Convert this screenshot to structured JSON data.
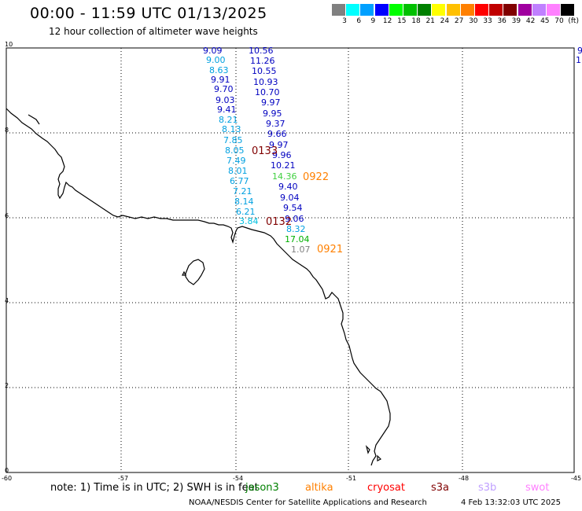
{
  "header": {
    "title": "00:00 - 11:59 UTC 01/13/2025",
    "subtitle": "12 hour collection of altimeter wave heights"
  },
  "color_scale": {
    "swatches": [
      "#808080",
      "#00ffff",
      "#00a0ff",
      "#0000ff",
      "#00ff00",
      "#00c000",
      "#008000",
      "#ffff00",
      "#ffc000",
      "#ff8000",
      "#ff0000",
      "#c00000",
      "#800000",
      "#a000a0",
      "#c080ff",
      "#ff80ff",
      "#000000"
    ],
    "labels": [
      "3",
      "6",
      "9",
      "12",
      "15",
      "18",
      "21",
      "24",
      "27",
      "30",
      "33",
      "36",
      "39",
      "42",
      "45",
      "70",
      "(ft)"
    ]
  },
  "map": {
    "lat_labels": [
      "10",
      "8",
      "6",
      "4",
      "2",
      "0"
    ],
    "lon_labels": [
      "-60",
      "-57",
      "-54",
      "-51",
      "-48",
      "-45"
    ],
    "tracks": [
      {
        "label": "9.09",
        "color": "#0000c0"
      },
      {
        "label": "9.00",
        "color": "#00a0e0"
      },
      {
        "label": "8.63",
        "color": "#00a0e0"
      },
      {
        "label": "9.91",
        "color": "#0000c0"
      },
      {
        "label": "9.70",
        "color": "#0000c0"
      },
      {
        "label": "9.03",
        "color": "#0000c0"
      },
      {
        "label": "9.41",
        "color": "#0000c0"
      },
      {
        "label": "8.21",
        "color": "#00a0e0"
      },
      {
        "label": "8.13",
        "color": "#00a0e0"
      },
      {
        "label": "7.85",
        "color": "#00a0e0"
      },
      {
        "label": "8.05",
        "color": "#00a0e0"
      },
      {
        "label": "7.49",
        "color": "#00a0e0"
      },
      {
        "label": "8.01",
        "color": "#00a0e0"
      },
      {
        "label": "6.77",
        "color": "#00a0e0"
      },
      {
        "label": "7.21",
        "color": "#00a0e0"
      },
      {
        "label": "8.14",
        "color": "#00a0e0"
      },
      {
        "label": "6.21",
        "color": "#00a0e0"
      },
      {
        "label": "3.84",
        "color": "#00c0e0"
      },
      {
        "label": "10.56",
        "color": "#0000c0"
      },
      {
        "label": "11.26",
        "color": "#0000c0"
      },
      {
        "label": "10.55",
        "color": "#0000c0"
      },
      {
        "label": "10.93",
        "color": "#0000c0"
      },
      {
        "label": "10.70",
        "color": "#0000c0"
      },
      {
        "label": "9.97",
        "color": "#0000c0"
      },
      {
        "label": "9.95",
        "color": "#0000c0"
      },
      {
        "label": "9.37",
        "color": "#0000c0"
      },
      {
        "label": "9.66",
        "color": "#0000c0"
      },
      {
        "label": "9.97",
        "color": "#0000c0"
      },
      {
        "label": "9.96",
        "color": "#0000c0"
      },
      {
        "label": "10.21",
        "color": "#0000c0"
      },
      {
        "label": "14.36",
        "color": "#40d040"
      },
      {
        "label": "9.40",
        "color": "#0000c0"
      },
      {
        "label": "9.04",
        "color": "#0000c0"
      },
      {
        "label": "9.54",
        "color": "#0000c0"
      },
      {
        "label": "9.06",
        "color": "#0000c0"
      },
      {
        "label": "8.32",
        "color": "#00a0e0"
      },
      {
        "label": "17.04",
        "color": "#00b000"
      },
      {
        "label": "1.07",
        "color": "#808080"
      },
      {
        "label": "9",
        "color": "#0000c0"
      },
      {
        "label": "1",
        "color": "#0000c0"
      }
    ],
    "time_labels": [
      {
        "text": "0133",
        "color": "#800000"
      },
      {
        "text": "0922",
        "color": "#ff8000"
      },
      {
        "text": "0132",
        "color": "#800000"
      },
      {
        "text": "0921",
        "color": "#ff8000"
      }
    ]
  },
  "footer": {
    "note": "note: 1) Time is in UTC; 2) SWH is in feet",
    "satellites": [
      {
        "name": "jason3",
        "color": "#008000"
      },
      {
        "name": "altika",
        "color": "#ff8000"
      },
      {
        "name": "cryosat",
        "color": "#ff0000"
      },
      {
        "name": "s3a",
        "color": "#800000"
      },
      {
        "name": "s3b",
        "color": "#c0a0ff"
      },
      {
        "name": "swot",
        "color": "#ff80ff"
      }
    ],
    "credit": "NOAA/NESDIS Center for Satellite Applications and Research",
    "timestamp": "4 Feb 13:32:03 UTC 2025"
  }
}
